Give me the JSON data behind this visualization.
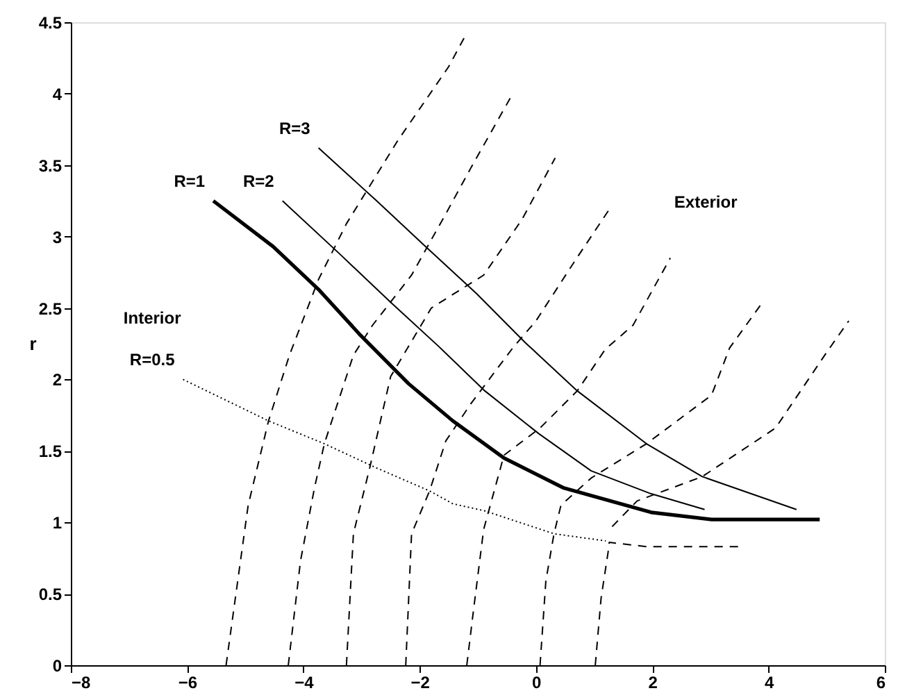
{
  "chart_data": {
    "type": "line",
    "ylabel": "r",
    "xlim": [
      -8,
      6
    ],
    "ylim": [
      0,
      4.5
    ],
    "xticks": [
      -8,
      -6,
      -4,
      -2,
      0,
      2,
      4,
      6
    ],
    "yticks": [
      0,
      0.5,
      1,
      1.5,
      2,
      2.5,
      3,
      3.5,
      4,
      4.5
    ],
    "grid": false,
    "marker": "none",
    "series": [
      {
        "name": "R=1",
        "color": "#000000",
        "line_style": "solid",
        "x": [
          -5.55,
          -4.52,
          -3.74,
          -3.02,
          -2.19,
          -1.43,
          -0.55,
          0.48,
          1.98,
          3.02,
          4.88
        ],
        "values": [
          3.25,
          2.93,
          2.63,
          2.31,
          1.97,
          1.71,
          1.45,
          1.24,
          1.07,
          1.02,
          1.02
        ]
      },
      {
        "name": "R=2",
        "color": "#000000",
        "line_style": "solid",
        "x": [
          -4.36,
          -3.38,
          -2.5,
          -1.67,
          -0.88,
          0.05,
          0.95,
          1.98,
          2.9
        ],
        "values": [
          3.25,
          2.88,
          2.54,
          2.23,
          1.92,
          1.62,
          1.36,
          1.2,
          1.09
        ]
      },
      {
        "name": "R=3",
        "color": "#000000",
        "line_style": "solid",
        "x": [
          -3.74,
          -2.74,
          -1.9,
          -1.02,
          -0.19,
          0.71,
          1.9,
          2.86,
          4.48
        ],
        "values": [
          3.62,
          3.25,
          2.93,
          2.6,
          2.26,
          1.92,
          1.55,
          1.32,
          1.09
        ]
      },
      {
        "name": "R=0.5",
        "color": "#000000",
        "line_style": "dotted",
        "x": [
          -6.07,
          -4.6,
          -3.64,
          -2.74,
          -1.83,
          -1.43,
          -0.88,
          0.31,
          1.2
        ],
        "values": [
          2.0,
          1.71,
          1.55,
          1.38,
          1.22,
          1.13,
          1.08,
          0.92,
          0.87
        ]
      },
      {
        "color": "#000000",
        "line_style": "dashed",
        "x": [
          -5.33,
          -4.95,
          -4.6,
          -4.24,
          -3.74,
          -3.26,
          -2.38,
          -1.5,
          -1.21
        ],
        "values": [
          0,
          1.12,
          1.71,
          2.17,
          2.7,
          3.09,
          3.67,
          4.19,
          4.41
        ]
      },
      {
        "color": "#000000",
        "line_style": "dashed",
        "x": [
          -4.26,
          -4.05,
          -3.81,
          -3.64,
          -3.14,
          -2.81,
          -2.14,
          -1.55,
          -1.12,
          -0.4
        ],
        "values": [
          0,
          0.73,
          1.24,
          1.55,
          2.17,
          2.38,
          2.73,
          3.16,
          3.48,
          4.0
        ]
      },
      {
        "color": "#000000",
        "line_style": "dashed",
        "x": [
          -3.26,
          -3.14,
          -2.86,
          -2.5,
          -1.8,
          -0.9,
          -0.24,
          0.33
        ],
        "values": [
          0,
          0.92,
          1.38,
          2.02,
          2.5,
          2.73,
          3.12,
          3.55
        ]
      },
      {
        "color": "#000000",
        "line_style": "dashed",
        "x": [
          -2.24,
          -2.14,
          -1.83,
          -1.55,
          -1.12,
          -0.4,
          0,
          0.67,
          1.26
        ],
        "values": [
          0,
          0.92,
          1.22,
          1.57,
          1.83,
          2.22,
          2.41,
          2.83,
          3.19
        ]
      },
      {
        "color": "#000000",
        "line_style": "dashed",
        "x": [
          -1.19,
          -1.07,
          -0.9,
          -0.55,
          0.07,
          0.71,
          1.19,
          1.67,
          2.31
        ],
        "values": [
          0,
          0.4,
          0.95,
          1.47,
          1.66,
          1.92,
          2.21,
          2.38,
          2.85
        ]
      },
      {
        "color": "#000000",
        "line_style": "dashed",
        "x": [
          0.07,
          0.17,
          0.31,
          0.43,
          0.95,
          1.9,
          3.02,
          3.33,
          3.88
        ],
        "values": [
          0,
          0.59,
          0.92,
          1.12,
          1.31,
          1.55,
          1.89,
          2.22,
          2.53
        ]
      },
      {
        "color": "#000000",
        "line_style": "dashed",
        "x": [
          1.02,
          1.12,
          1.24,
          1.26,
          1.9,
          3.52
        ],
        "values": [
          0,
          0.47,
          0.79,
          0.86,
          0.83,
          0.83
        ]
      },
      {
        "color": "#000000",
        "line_style": "dashed",
        "x": [
          1.31,
          1.74,
          2.86,
          4.12,
          5.0,
          5.38
        ],
        "values": [
          0.97,
          1.15,
          1.32,
          1.66,
          2.19,
          2.41
        ]
      }
    ],
    "annotations": [
      "Interior",
      "Exterior"
    ]
  }
}
